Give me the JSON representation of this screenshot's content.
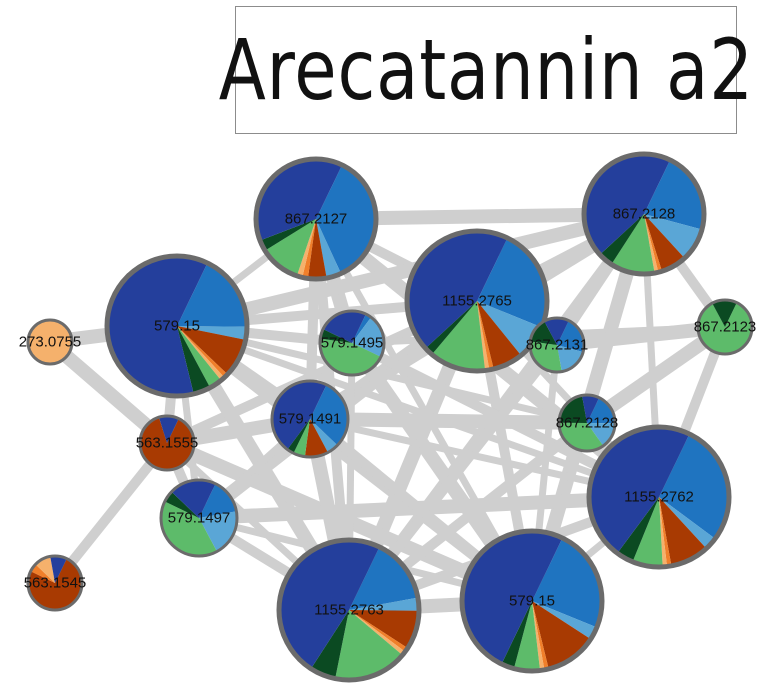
{
  "title": "Arecatannin a2",
  "colors": {
    "edge": "#cfcfcf",
    "ring": "#6b6b6b",
    "segments": [
      "#1f74c0",
      "#5aa6d6",
      "#a83a02",
      "#f07f2a",
      "#f5b16c",
      "#5dbb6a",
      "#0b4a22",
      "#243f9c"
    ]
  },
  "nodes": [
    {
      "id": "n867a",
      "label": "867.2127",
      "slices": [
        0.36,
        0.04,
        0.05,
        0.015,
        0.015,
        0.11,
        0.03,
        0.38
      ]
    },
    {
      "id": "n867b",
      "label": "867.2128",
      "slices": [
        0.22,
        0.09,
        0.07,
        0.01,
        0.01,
        0.12,
        0.04,
        0.44
      ]
    },
    {
      "id": "n1155a",
      "label": "1155.2765",
      "slices": [
        0.24,
        0.08,
        0.07,
        0.01,
        0.01,
        0.13,
        0.02,
        0.44
      ]
    },
    {
      "id": "n579a",
      "label": "579.15",
      "slices": [
        0.18,
        0.03,
        0.09,
        0.01,
        0.01,
        0.03,
        0.04,
        0.61
      ]
    },
    {
      "id": "n273",
      "label": "273.0755",
      "slices": [
        0.0,
        0.0,
        0.0,
        0.0,
        1.0,
        0.0,
        0.0,
        0.0
      ]
    },
    {
      "id": "n5791495",
      "label": "579.1495",
      "slices": [
        0.03,
        0.22,
        0.0,
        0.0,
        0.0,
        0.45,
        0.05,
        0.25
      ]
    },
    {
      "id": "n867c",
      "label": "867.2131",
      "slices": [
        0.22,
        0.18,
        0.0,
        0.0,
        0.0,
        0.3,
        0.15,
        0.15
      ]
    },
    {
      "id": "n867d",
      "label": "867.2123",
      "slices": [
        0.0,
        0.0,
        0.0,
        0.0,
        0.0,
        0.85,
        0.15,
        0.0
      ]
    },
    {
      "id": "n563a",
      "label": "563.1555",
      "slices": [
        0.0,
        0.0,
        0.88,
        0.0,
        0.0,
        0.0,
        0.0,
        0.12
      ]
    },
    {
      "id": "n5791491",
      "label": "579.1491",
      "slices": [
        0.3,
        0.05,
        0.1,
        0.0,
        0.0,
        0.05,
        0.03,
        0.47
      ]
    },
    {
      "id": "n867e",
      "label": "867.2128",
      "slices": [
        0.18,
        0.15,
        0.0,
        0.0,
        0.0,
        0.35,
        0.22,
        0.1
      ]
    },
    {
      "id": "n1155b",
      "label": "1155.2762",
      "slices": [
        0.28,
        0.03,
        0.09,
        0.01,
        0.01,
        0.07,
        0.04,
        0.47
      ]
    },
    {
      "id": "n5791497",
      "label": "579.1497",
      "slices": [
        0.15,
        0.2,
        0.0,
        0.0,
        0.0,
        0.4,
        0.05,
        0.2
      ]
    },
    {
      "id": "n563b",
      "label": "563.1545",
      "slices": [
        0.0,
        0.0,
        0.75,
        0.05,
        0.1,
        0.0,
        0.0,
        0.1
      ]
    },
    {
      "id": "n1155c",
      "label": "1155.2763",
      "slices": [
        0.15,
        0.03,
        0.09,
        0.01,
        0.01,
        0.17,
        0.06,
        0.48
      ]
    },
    {
      "id": "n579b",
      "label": "579.15",
      "slices": [
        0.24,
        0.03,
        0.12,
        0.01,
        0.01,
        0.06,
        0.03,
        0.5
      ]
    }
  ],
  "edges": [
    [
      "n867a",
      "n867b"
    ],
    [
      "n867a",
      "n1155a"
    ],
    [
      "n867a",
      "n579a"
    ],
    [
      "n867a",
      "n5791495"
    ],
    [
      "n867a",
      "n1155c"
    ],
    [
      "n867a",
      "n579b"
    ],
    [
      "n867a",
      "n1155b"
    ],
    [
      "n867a",
      "n5791491"
    ],
    [
      "n867b",
      "n1155a"
    ],
    [
      "n867b",
      "n579a"
    ],
    [
      "n867b",
      "n867c"
    ],
    [
      "n867b",
      "n1155b"
    ],
    [
      "n867b",
      "n579b"
    ],
    [
      "n867b",
      "n1155c"
    ],
    [
      "n867b",
      "n867e"
    ],
    [
      "n867b",
      "n5791491"
    ],
    [
      "n1155a",
      "n579a"
    ],
    [
      "n1155a",
      "n1155b"
    ],
    [
      "n1155a",
      "n1155c"
    ],
    [
      "n1155a",
      "n579b"
    ],
    [
      "n1155a",
      "n867c"
    ],
    [
      "n1155a",
      "n5791497"
    ],
    [
      "n1155a",
      "n563a"
    ],
    [
      "n1155a",
      "n5791491"
    ],
    [
      "n579a",
      "n273"
    ],
    [
      "n579a",
      "n563a"
    ],
    [
      "n579a",
      "n5791497"
    ],
    [
      "n579a",
      "n1155c"
    ],
    [
      "n579a",
      "n579b"
    ],
    [
      "n579a",
      "n1155b"
    ],
    [
      "n579a",
      "n5791491"
    ],
    [
      "n579a",
      "n5791495"
    ],
    [
      "n579a",
      "n867e"
    ],
    [
      "n273",
      "n563a"
    ],
    [
      "n563a",
      "n563b"
    ],
    [
      "n563a",
      "n1155c"
    ],
    [
      "n563a",
      "n579b"
    ],
    [
      "n563a",
      "n5791497"
    ],
    [
      "n5791495",
      "n1155c"
    ],
    [
      "n5791495",
      "n579b"
    ],
    [
      "n5791495",
      "n1155b"
    ],
    [
      "n5791495",
      "n867d"
    ],
    [
      "n867c",
      "n867d"
    ],
    [
      "n867c",
      "n1155c"
    ],
    [
      "n867c",
      "n579b"
    ],
    [
      "n867e",
      "n867d"
    ],
    [
      "n867e",
      "n1155c"
    ],
    [
      "n867e",
      "n579b"
    ],
    [
      "n867e",
      "n5791491"
    ],
    [
      "n1155b",
      "n1155c"
    ],
    [
      "n1155b",
      "n579b"
    ],
    [
      "n1155b",
      "n5791497"
    ],
    [
      "n1155b",
      "n867d"
    ],
    [
      "n1155b",
      "n5791491"
    ],
    [
      "n5791491",
      "n1155c"
    ],
    [
      "n5791491",
      "n579b"
    ],
    [
      "n5791491",
      "n5791497"
    ],
    [
      "n5791491",
      "n563a"
    ],
    [
      "n5791497",
      "n1155c"
    ],
    [
      "n5791497",
      "n579b"
    ],
    [
      "n1155c",
      "n579b"
    ],
    [
      "n867d",
      "n867b"
    ]
  ]
}
